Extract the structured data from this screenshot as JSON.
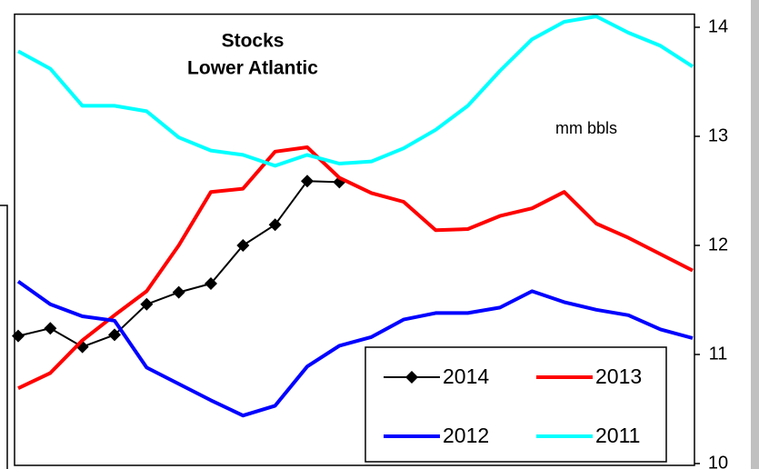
{
  "chart_data": {
    "type": "line",
    "title": [
      "Stocks",
      "Lower Atlantic"
    ],
    "annotation": "mm bbls",
    "categories": [
      null,
      null,
      null,
      null,
      null,
      null,
      null,
      null,
      null,
      null,
      null,
      null,
      null,
      null,
      null,
      null,
      null,
      null,
      null,
      null,
      null,
      null
    ],
    "ylim": [
      10,
      14.12
    ],
    "yticks": [
      10,
      11,
      12,
      13,
      14
    ],
    "grid": false,
    "series": [
      {
        "name": "2014",
        "color": "#000000",
        "marker": "diamond",
        "values": [
          11.17,
          11.24,
          11.07,
          11.18,
          11.46,
          11.57,
          11.65,
          12.0,
          12.19,
          12.59,
          12.58,
          null,
          null,
          null,
          null,
          null,
          null,
          null,
          null,
          null,
          null,
          null
        ]
      },
      {
        "name": "2013",
        "color": "#ff0000",
        "values": [
          10.69,
          10.83,
          11.13,
          11.36,
          11.58,
          12.0,
          12.49,
          12.52,
          12.86,
          12.9,
          12.62,
          12.48,
          12.4,
          12.14,
          12.15,
          12.27,
          12.34,
          12.49,
          12.2,
          12.07,
          11.92,
          11.77
        ]
      },
      {
        "name": "2012",
        "color": "#0000ff",
        "values": [
          11.67,
          11.46,
          11.35,
          11.31,
          10.88,
          10.73,
          10.58,
          10.44,
          10.53,
          10.89,
          11.08,
          11.16,
          11.32,
          11.38,
          11.38,
          11.43,
          11.58,
          11.48,
          11.41,
          11.36,
          11.23,
          11.15
        ]
      },
      {
        "name": "2011",
        "color": "#00ffff",
        "values": [
          13.78,
          13.62,
          13.28,
          13.28,
          13.23,
          12.99,
          12.87,
          12.83,
          12.73,
          12.83,
          12.75,
          12.77,
          12.89,
          13.06,
          13.28,
          13.6,
          13.89,
          14.05,
          14.1,
          13.95,
          13.83,
          13.64
        ]
      }
    ]
  }
}
